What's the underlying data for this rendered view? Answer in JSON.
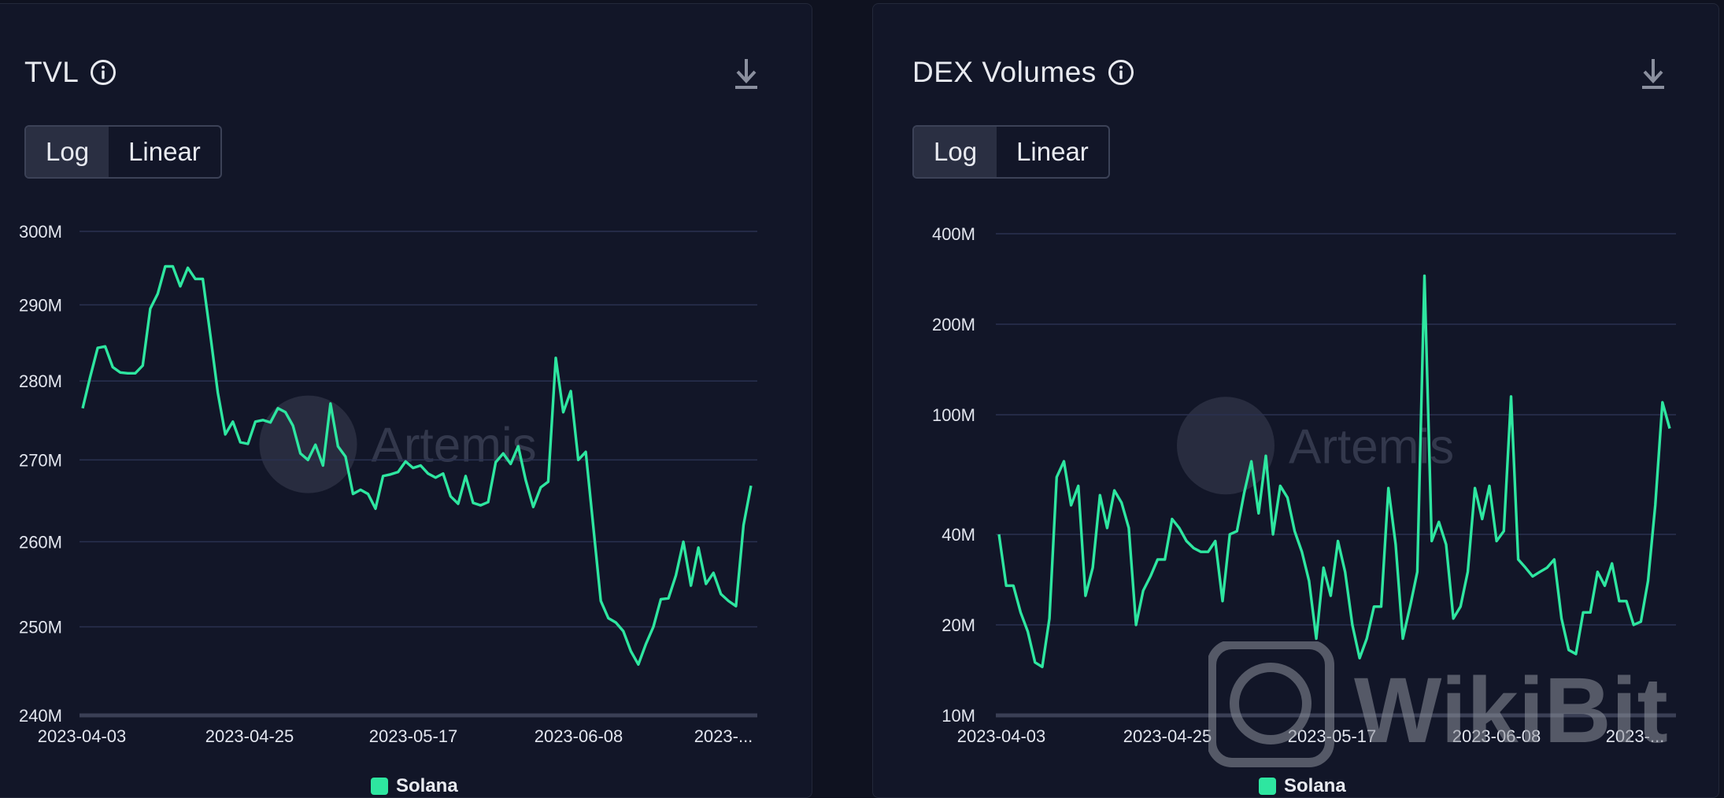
{
  "colors": {
    "background": "#0f1220",
    "panel": "#121628",
    "grid": "#2a3150",
    "line": "#2ee6a0",
    "text": "#e8eaf0",
    "axis_text": "#e2e5ee"
  },
  "watermark": {
    "artemis": "Artemis",
    "wikibit": "WikiBit"
  },
  "panels": [
    {
      "title": "TVL",
      "toggle": [
        "Log",
        "Linear"
      ],
      "active": "Log",
      "legend": "Solana"
    },
    {
      "title": "DEX Volumes",
      "toggle": [
        "Log",
        "Linear"
      ],
      "active": "Log",
      "legend": "Solana"
    }
  ],
  "chart_data": [
    {
      "type": "line",
      "title": "TVL",
      "scale": "log",
      "xlabel": "",
      "ylabel": "",
      "ylim": [
        240000000,
        300000000
      ],
      "y_ticks": [
        240000000,
        250000000,
        260000000,
        270000000,
        280000000,
        290000000,
        300000000
      ],
      "y_tick_labels": [
        "240M",
        "250M",
        "260M",
        "270M",
        "280M",
        "290M",
        "300M"
      ],
      "x_tick_labels": [
        "2023-04-03",
        "2023-04-25",
        "2023-05-17",
        "2023-06-08",
        "2023-..."
      ],
      "x_start": "2023-04-03",
      "grid": true,
      "legend": "bottom-center",
      "series": [
        {
          "name": "Solana",
          "values": [
            276.5,
            280.5,
            284.3,
            284.5,
            281.8,
            281.1,
            281.0,
            281.0,
            282.0,
            289.5,
            291.5,
            295.2,
            295.2,
            292.5,
            295.0,
            293.5,
            293.5,
            286.0,
            278.5,
            273.2,
            274.8,
            272.2,
            272.0,
            274.8,
            275.0,
            274.7,
            276.5,
            276.0,
            274.3,
            270.8,
            270.0,
            271.9,
            269.3,
            277.1,
            271.7,
            270.4,
            265.8,
            266.3,
            265.8,
            264.0,
            268.0,
            268.2,
            268.5,
            269.8,
            269.0,
            269.3,
            268.3,
            267.8,
            268.3,
            265.5,
            264.6,
            268.0,
            264.7,
            264.4,
            264.8,
            269.7,
            270.8,
            269.5,
            271.7,
            267.5,
            264.2,
            266.6,
            267.3,
            283.0,
            276.0,
            278.7,
            270.0,
            271.0,
            261.8,
            253.0,
            251.0,
            250.5,
            249.5,
            247.2,
            245.7,
            248.0,
            250.0,
            253.2,
            253.3,
            256.0,
            260.0,
            254.8,
            259.3,
            255.0,
            256.3,
            253.8,
            253.0,
            252.4,
            262.0,
            266.8
          ]
        }
      ]
    },
    {
      "type": "line",
      "title": "DEX Volumes",
      "scale": "log",
      "xlabel": "",
      "ylabel": "",
      "ylim": [
        10000000,
        400000000
      ],
      "y_ticks": [
        10000000,
        20000000,
        40000000,
        100000000,
        200000000,
        400000000
      ],
      "y_tick_labels": [
        "10M",
        "20M",
        "40M",
        "100M",
        "200M",
        "400M"
      ],
      "x_tick_labels": [
        "2023-04-03",
        "2023-04-25",
        "2023-05-17",
        "2023-06-08",
        "2023-..."
      ],
      "x_start": "2023-04-03",
      "grid": true,
      "legend": "bottom-center",
      "series": [
        {
          "name": "Solana",
          "values": [
            40,
            27,
            27,
            22,
            19,
            15,
            14.5,
            21,
            62,
            70,
            50,
            58,
            25,
            31,
            54,
            42,
            56,
            51,
            42,
            20,
            26,
            29,
            33,
            33,
            45,
            42,
            38,
            36,
            35,
            35,
            38,
            24,
            40,
            41,
            55,
            70,
            47,
            73,
            40,
            58,
            53,
            41,
            35,
            28,
            18,
            31,
            25,
            38,
            30,
            20,
            15.5,
            18,
            23,
            23,
            57,
            37,
            18,
            23,
            30,
            290,
            38,
            44,
            37,
            21,
            23,
            30,
            57,
            45,
            58,
            38,
            41,
            115,
            33,
            31,
            29,
            30,
            31,
            33,
            21,
            16.5,
            16,
            22,
            22,
            30,
            27,
            32,
            24,
            24,
            20,
            20.5,
            28,
            50,
            110,
            90
          ]
        }
      ]
    }
  ]
}
